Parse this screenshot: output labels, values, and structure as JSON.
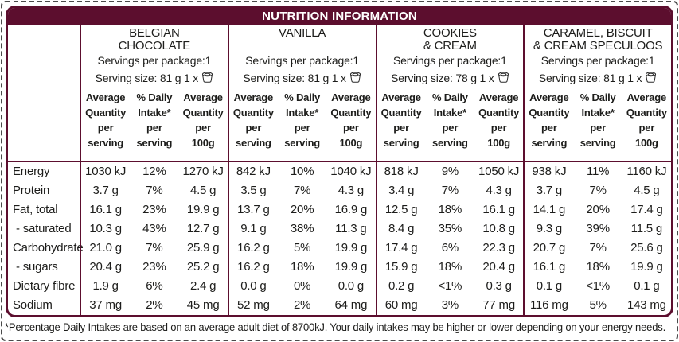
{
  "title": "NUTRITION INFORMATION",
  "colors": {
    "maroon": "#5c0e2e",
    "text": "#1d1d1b"
  },
  "row_labels": [
    "Energy",
    "Protein",
    "Fat, total",
    " - saturated",
    "Carbohydrate",
    " - sugars",
    "Dietary fibre",
    "Sodium"
  ],
  "subheaders": [
    "Average\nQuantity\nper\nserving",
    "% Daily\nIntake*\nper\nserving",
    "Average\nQuantity\nper\n100g"
  ],
  "icons": {
    "serving_cup": "tub-icon"
  },
  "products": [
    {
      "name": "BELGIAN\nCHOCOLATE",
      "servings_line": "Servings per package:1",
      "serving_size_line": "Serving size: 81 g  1 x",
      "rows": [
        [
          "1030 kJ",
          "12%",
          "1270 kJ"
        ],
        [
          "3.7 g",
          "7%",
          "4.5 g"
        ],
        [
          "16.1 g",
          "23%",
          "19.9 g"
        ],
        [
          "10.3 g",
          "43%",
          "12.7 g"
        ],
        [
          "21.0 g",
          "7%",
          "25.9 g"
        ],
        [
          "20.4 g",
          "23%",
          "25.2 g"
        ],
        [
          "1.9 g",
          "6%",
          "2.4 g"
        ],
        [
          "37 mg",
          "2%",
          "45 mg"
        ]
      ]
    },
    {
      "name": "VANILLA",
      "servings_line": "Servings per package:1",
      "serving_size_line": "Serving size: 81 g  1 x",
      "rows": [
        [
          "842 kJ",
          "10%",
          "1040 kJ"
        ],
        [
          "3.5 g",
          "7%",
          "4.3 g"
        ],
        [
          "13.7 g",
          "20%",
          "16.9 g"
        ],
        [
          "9.1 g",
          "38%",
          "11.3 g"
        ],
        [
          "16.2 g",
          "5%",
          "19.9 g"
        ],
        [
          "16.2 g",
          "18%",
          "19.9 g"
        ],
        [
          "0.0 g",
          "0%",
          "0.0 g"
        ],
        [
          "52 mg",
          "2%",
          "64 mg"
        ]
      ]
    },
    {
      "name": "COOKIES\n& CREAM",
      "servings_line": "Servings per package:1",
      "serving_size_line": "Serving size: 78 g  1 x",
      "rows": [
        [
          "818 kJ",
          "9%",
          "1050 kJ"
        ],
        [
          "3.4 g",
          "7%",
          "4.3 g"
        ],
        [
          "12.5 g",
          "18%",
          "16.1 g"
        ],
        [
          "8.4 g",
          "35%",
          "10.8 g"
        ],
        [
          "17.4 g",
          "6%",
          "22.3 g"
        ],
        [
          "15.9 g",
          "18%",
          "20.4 g"
        ],
        [
          "0.2 g",
          "<1%",
          "0.3 g"
        ],
        [
          "60 mg",
          "3%",
          "77 mg"
        ]
      ]
    },
    {
      "name": "CARAMEL, BISCUIT\n& CREAM SPECULOOS",
      "servings_line": "Servings per package:1",
      "serving_size_line": "Serving size: 81 g  1 x",
      "rows": [
        [
          "938 kJ",
          "11%",
          "1160 kJ"
        ],
        [
          "3.7 g",
          "7%",
          "4.5 g"
        ],
        [
          "14.1 g",
          "20%",
          "17.4 g"
        ],
        [
          "9.3 g",
          "39%",
          "11.5 g"
        ],
        [
          "20.7 g",
          "7%",
          "25.6 g"
        ],
        [
          "16.1 g",
          "18%",
          "19.9 g"
        ],
        [
          "0.1 g",
          "<1%",
          "0.1 g"
        ],
        [
          "116 mg",
          "5%",
          "143 mg"
        ]
      ]
    }
  ],
  "footnote": "*Percentage Daily Intakes are based on an average adult diet of 8700kJ. Your daily intakes may be higher or lower depending on your energy needs."
}
